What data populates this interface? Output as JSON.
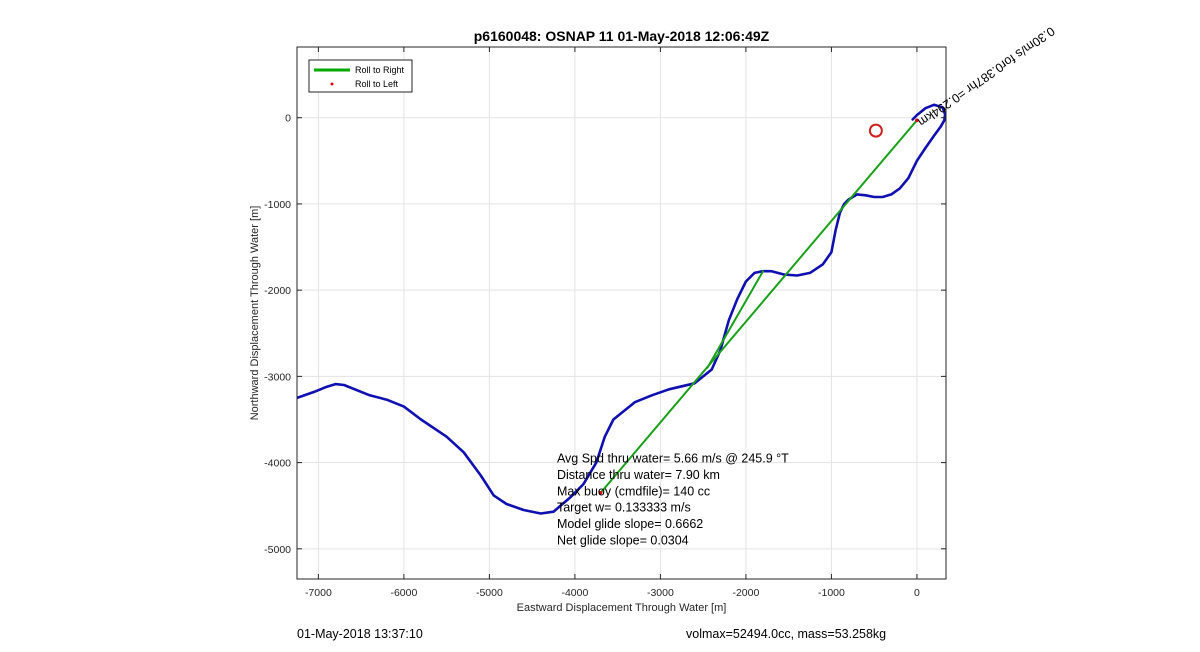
{
  "chart_data": {
    "type": "line",
    "title": "p6160048: OSNAP 11 01-May-2018 12:06:49Z",
    "xlabel": "Eastward Displacement Through Water [m]",
    "ylabel": "Northward Displacement Through Water [m]",
    "xlim": [
      -7250,
      340
    ],
    "ylim": [
      -5350,
      820
    ],
    "xticks": [
      -7000,
      -6000,
      -5000,
      -4000,
      -3000,
      -2000,
      -1000,
      0
    ],
    "xtick_labels": [
      "-7000",
      "-6000",
      "-5000",
      "-4000",
      "-3000",
      "-2000",
      "-1000",
      "0"
    ],
    "yticks": [
      -5000,
      -4000,
      -3000,
      -2000,
      -1000,
      0
    ],
    "ytick_labels": [
      "-5000",
      "-4000",
      "-3000",
      "-2000",
      "-1000",
      "0"
    ],
    "grid": true,
    "legend": {
      "placement": "top-left",
      "entries": [
        {
          "label": "Roll to Right",
          "color": "#00aa00",
          "marker": "line"
        },
        {
          "label": "Roll to Left",
          "color": "#dd0000",
          "marker": "dot"
        }
      ]
    },
    "series": [
      {
        "color": "#1010b0",
        "x": [
          -7250,
          -7050,
          -6900,
          -6800,
          -6700,
          -6400,
          -6200,
          -6000,
          -5800,
          -5500,
          -5300,
          -5100,
          -4950,
          -4800,
          -4600,
          -4400,
          -4250,
          -4050,
          -3900,
          -3750,
          -3650,
          -3550,
          -3450,
          -3300,
          -3100,
          -2900,
          -2600,
          -2400,
          -2300,
          -2200,
          -2100,
          -2000,
          -1900,
          -1800,
          -1700,
          -1550,
          -1400,
          -1250,
          -1100,
          -1000,
          -950,
          -900,
          -850,
          -800,
          -750,
          -700,
          -600,
          -500,
          -400,
          -300,
          -200,
          -100,
          0,
          100,
          200,
          280,
          320,
          330,
          300,
          200,
          100,
          0,
          -50
        ],
        "y": [
          -3250,
          -3180,
          -3120,
          -3090,
          -3100,
          -3220,
          -3270,
          -3350,
          -3500,
          -3700,
          -3880,
          -4150,
          -4380,
          -4480,
          -4550,
          -4590,
          -4570,
          -4400,
          -4250,
          -4000,
          -3700,
          -3500,
          -3420,
          -3300,
          -3220,
          -3150,
          -3080,
          -2920,
          -2700,
          -2350,
          -2100,
          -1900,
          -1800,
          -1780,
          -1780,
          -1820,
          -1830,
          -1800,
          -1700,
          -1560,
          -1300,
          -1100,
          -1000,
          -950,
          -920,
          -890,
          -900,
          -920,
          -920,
          -890,
          -820,
          -700,
          -500,
          -350,
          -210,
          -100,
          -30,
          40,
          120,
          150,
          110,
          30,
          -20
        ]
      },
      {
        "color": "#1aa01a",
        "x": [
          0,
          -3700
        ],
        "y": [
          -30,
          -4350
        ]
      },
      {
        "color": "#1aa01a",
        "x": [
          -2450,
          -1800
        ],
        "y": [
          -2900,
          -1780
        ]
      }
    ],
    "markers": [
      {
        "type": "circle",
        "x": -480,
        "y": -150,
        "color": "#cc2222"
      },
      {
        "type": "dot",
        "x": -3700,
        "y": -4350,
        "color": "#dd0000"
      },
      {
        "type": "dot",
        "x": 0,
        "y": -30,
        "color": "#dd0000"
      }
    ],
    "annotations": [
      {
        "text": "0.30 m/s for 0.387hr = 0.294km",
        "text_display": "0.30m/s for0.387hr =0.294km",
        "x": 0,
        "y": -30,
        "rotation": -35
      },
      {
        "text": "Avg Spd thru water=  5.66 m/s @ 245.9 °T",
        "x": -4210,
        "y": -4000
      },
      {
        "text": "Distance thru water=  7.90 km",
        "x": -4210,
        "y": -4190
      },
      {
        "text": "Max buoy (cmdfile)= 140 cc",
        "x": -4210,
        "y": -4380
      },
      {
        "text": "Target w= 0.133333 m/s",
        "x": -4210,
        "y": -4570
      },
      {
        "text": "Model glide slope= 0.6662",
        "x": -4210,
        "y": -4760
      },
      {
        "text": "Net glide slope= 0.0304",
        "x": -4210,
        "y": -4950
      }
    ]
  },
  "footer": {
    "left": "01-May-2018 13:37:10",
    "right": "volmax=52494.0cc, mass=53.258kg"
  }
}
